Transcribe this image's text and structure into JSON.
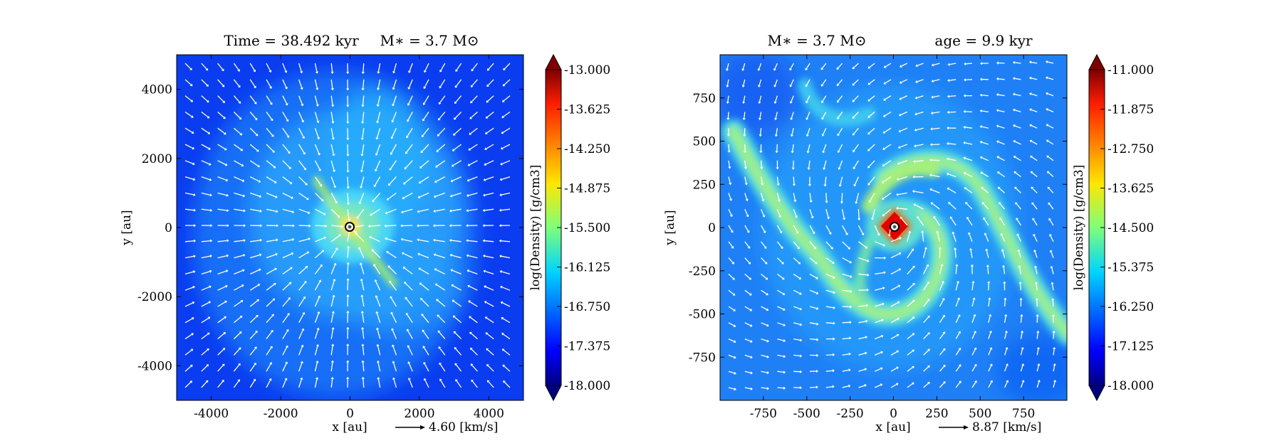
{
  "chart_data": [
    {
      "type": "heatmap",
      "title_left": "Time = 38.492 kyr",
      "title_right": "M∗ = 3.7 M⊙",
      "xlabel": "x [au]",
      "ylabel": "y [au]",
      "xlim": [
        -5000,
        5000
      ],
      "ylim": [
        -5000,
        5000
      ],
      "xticks": [
        -4000,
        -2000,
        0,
        2000,
        4000
      ],
      "xtick_labels": [
        "-4000",
        "-2000",
        "0",
        "2000",
        "4000"
      ],
      "yticks": [
        4000,
        2000,
        0,
        -2000,
        -4000
      ],
      "ytick_labels": [
        "4000",
        "2000",
        "0",
        "-2000",
        "-4000"
      ],
      "colorbar": {
        "label": "log(Density) [g/cm3]",
        "range": [
          -18.0,
          -13.0
        ],
        "tick_values": [
          -13.0,
          -13.625,
          -14.25,
          -14.875,
          -15.5,
          -16.125,
          -16.75,
          -17.375,
          -18.0
        ],
        "tick_labels": [
          "-13.000",
          "-13.625",
          "-14.250",
          "-14.875",
          "-15.500",
          "-16.125",
          "-16.750",
          "-17.375",
          "-18.000"
        ],
        "colormap": "jet"
      },
      "quiver_key": "4.60 [km/s]",
      "velocity_field": "infall"
    },
    {
      "type": "heatmap",
      "title_left": "M∗ = 3.7 M⊙",
      "title_right": "age = 9.9 kyr",
      "xlabel": "x [au]",
      "ylabel": "y [au]",
      "xlim": [
        -1000,
        1000
      ],
      "ylim": [
        -1000,
        1000
      ],
      "xticks": [
        -750,
        -500,
        -250,
        0,
        250,
        500,
        750
      ],
      "xtick_labels": [
        "-750",
        "-500",
        "-250",
        "0",
        "250",
        "500",
        "750"
      ],
      "yticks": [
        750,
        500,
        250,
        0,
        -250,
        -500,
        -750
      ],
      "ytick_labels": [
        "750",
        "500",
        "250",
        "0",
        "-250",
        "-500",
        "-750"
      ],
      "colorbar": {
        "label": "log(Density) [g/cm3]",
        "range": [
          -18.0,
          -11.0
        ],
        "tick_values": [
          -11.0,
          -11.875,
          -12.75,
          -13.625,
          -14.5,
          -15.375,
          -16.25,
          -17.125,
          -18.0
        ],
        "tick_labels": [
          "-11.000",
          "-11.875",
          "-12.750",
          "-13.625",
          "-14.500",
          "-15.375",
          "-16.250",
          "-17.125",
          "-18.000"
        ],
        "colormap": "jet"
      },
      "quiver_key": "8.87 [km/s]",
      "velocity_field": "spiral"
    }
  ]
}
